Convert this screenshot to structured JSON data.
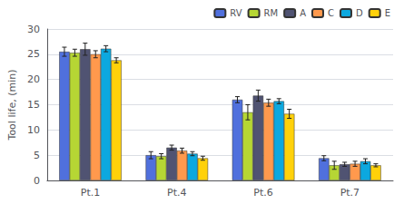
{
  "chart_data": {
    "type": "bar",
    "categories": [
      "Pt.1",
      "Pt.4",
      "Pt.6",
      "Pt.7"
    ],
    "ylabel": "Tool life, (min)",
    "series": [
      {
        "name": "RV",
        "values": [
          25.5,
          5.0,
          16.0,
          4.4
        ],
        "errors": [
          0.9,
          0.7,
          0.6,
          0.5
        ]
      },
      {
        "name": "RM",
        "values": [
          25.3,
          4.8,
          13.5,
          3.0
        ],
        "errors": [
          0.7,
          0.5,
          1.5,
          0.8
        ]
      },
      {
        "name": "A",
        "values": [
          26.0,
          6.5,
          16.8,
          3.2
        ],
        "errors": [
          1.2,
          0.5,
          1.1,
          0.4
        ]
      },
      {
        "name": "C",
        "values": [
          25.0,
          5.9,
          15.4,
          3.3
        ],
        "errors": [
          0.7,
          0.5,
          0.7,
          0.5
        ]
      },
      {
        "name": "D",
        "values": [
          26.1,
          5.3,
          15.7,
          3.8
        ],
        "errors": [
          0.6,
          0.4,
          0.5,
          0.5
        ]
      },
      {
        "name": "E",
        "values": [
          23.8,
          4.4,
          13.2,
          3.0
        ],
        "errors": [
          0.5,
          0.4,
          0.9,
          0.3
        ]
      }
    ],
    "ylim": [
      0,
      30
    ],
    "yticks": [
      0,
      5,
      10,
      15,
      20,
      25,
      30
    ],
    "grid": true,
    "legend": "upper right"
  }
}
